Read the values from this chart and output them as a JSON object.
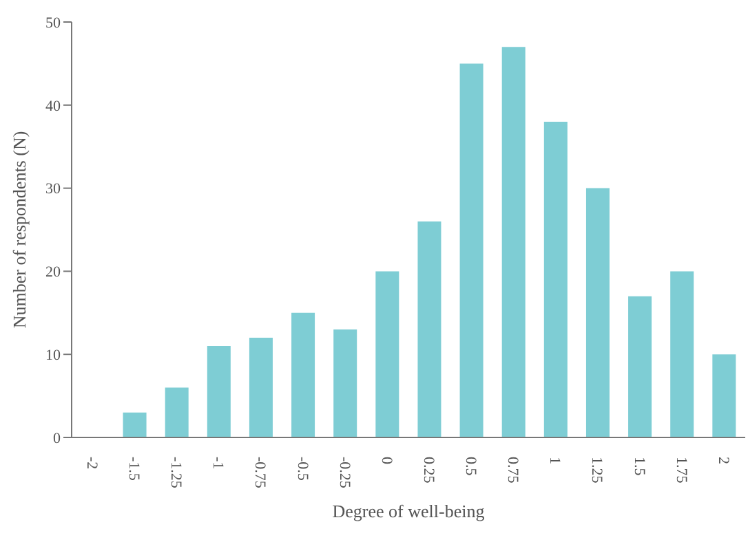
{
  "chart_data": {
    "type": "bar",
    "xlabel": "Degree of well-being",
    "ylabel": "Number of respondents (N)",
    "categories": [
      "-2",
      "-1.5",
      "-1.25",
      "-1",
      "-0.75",
      "-0.5",
      "-0.25",
      "0",
      "0.25",
      "0.5",
      "0.75",
      "1",
      "1.25",
      "1.5",
      "1.75",
      "2"
    ],
    "values": [
      0,
      3,
      6,
      11,
      12,
      15,
      13,
      20,
      26,
      45,
      47,
      38,
      30,
      17,
      20,
      10
    ],
    "color": "#7ecdd4",
    "ylim": [
      0,
      50
    ],
    "yticks": [
      0,
      10,
      20,
      30,
      40,
      50
    ],
    "grid": false
  }
}
